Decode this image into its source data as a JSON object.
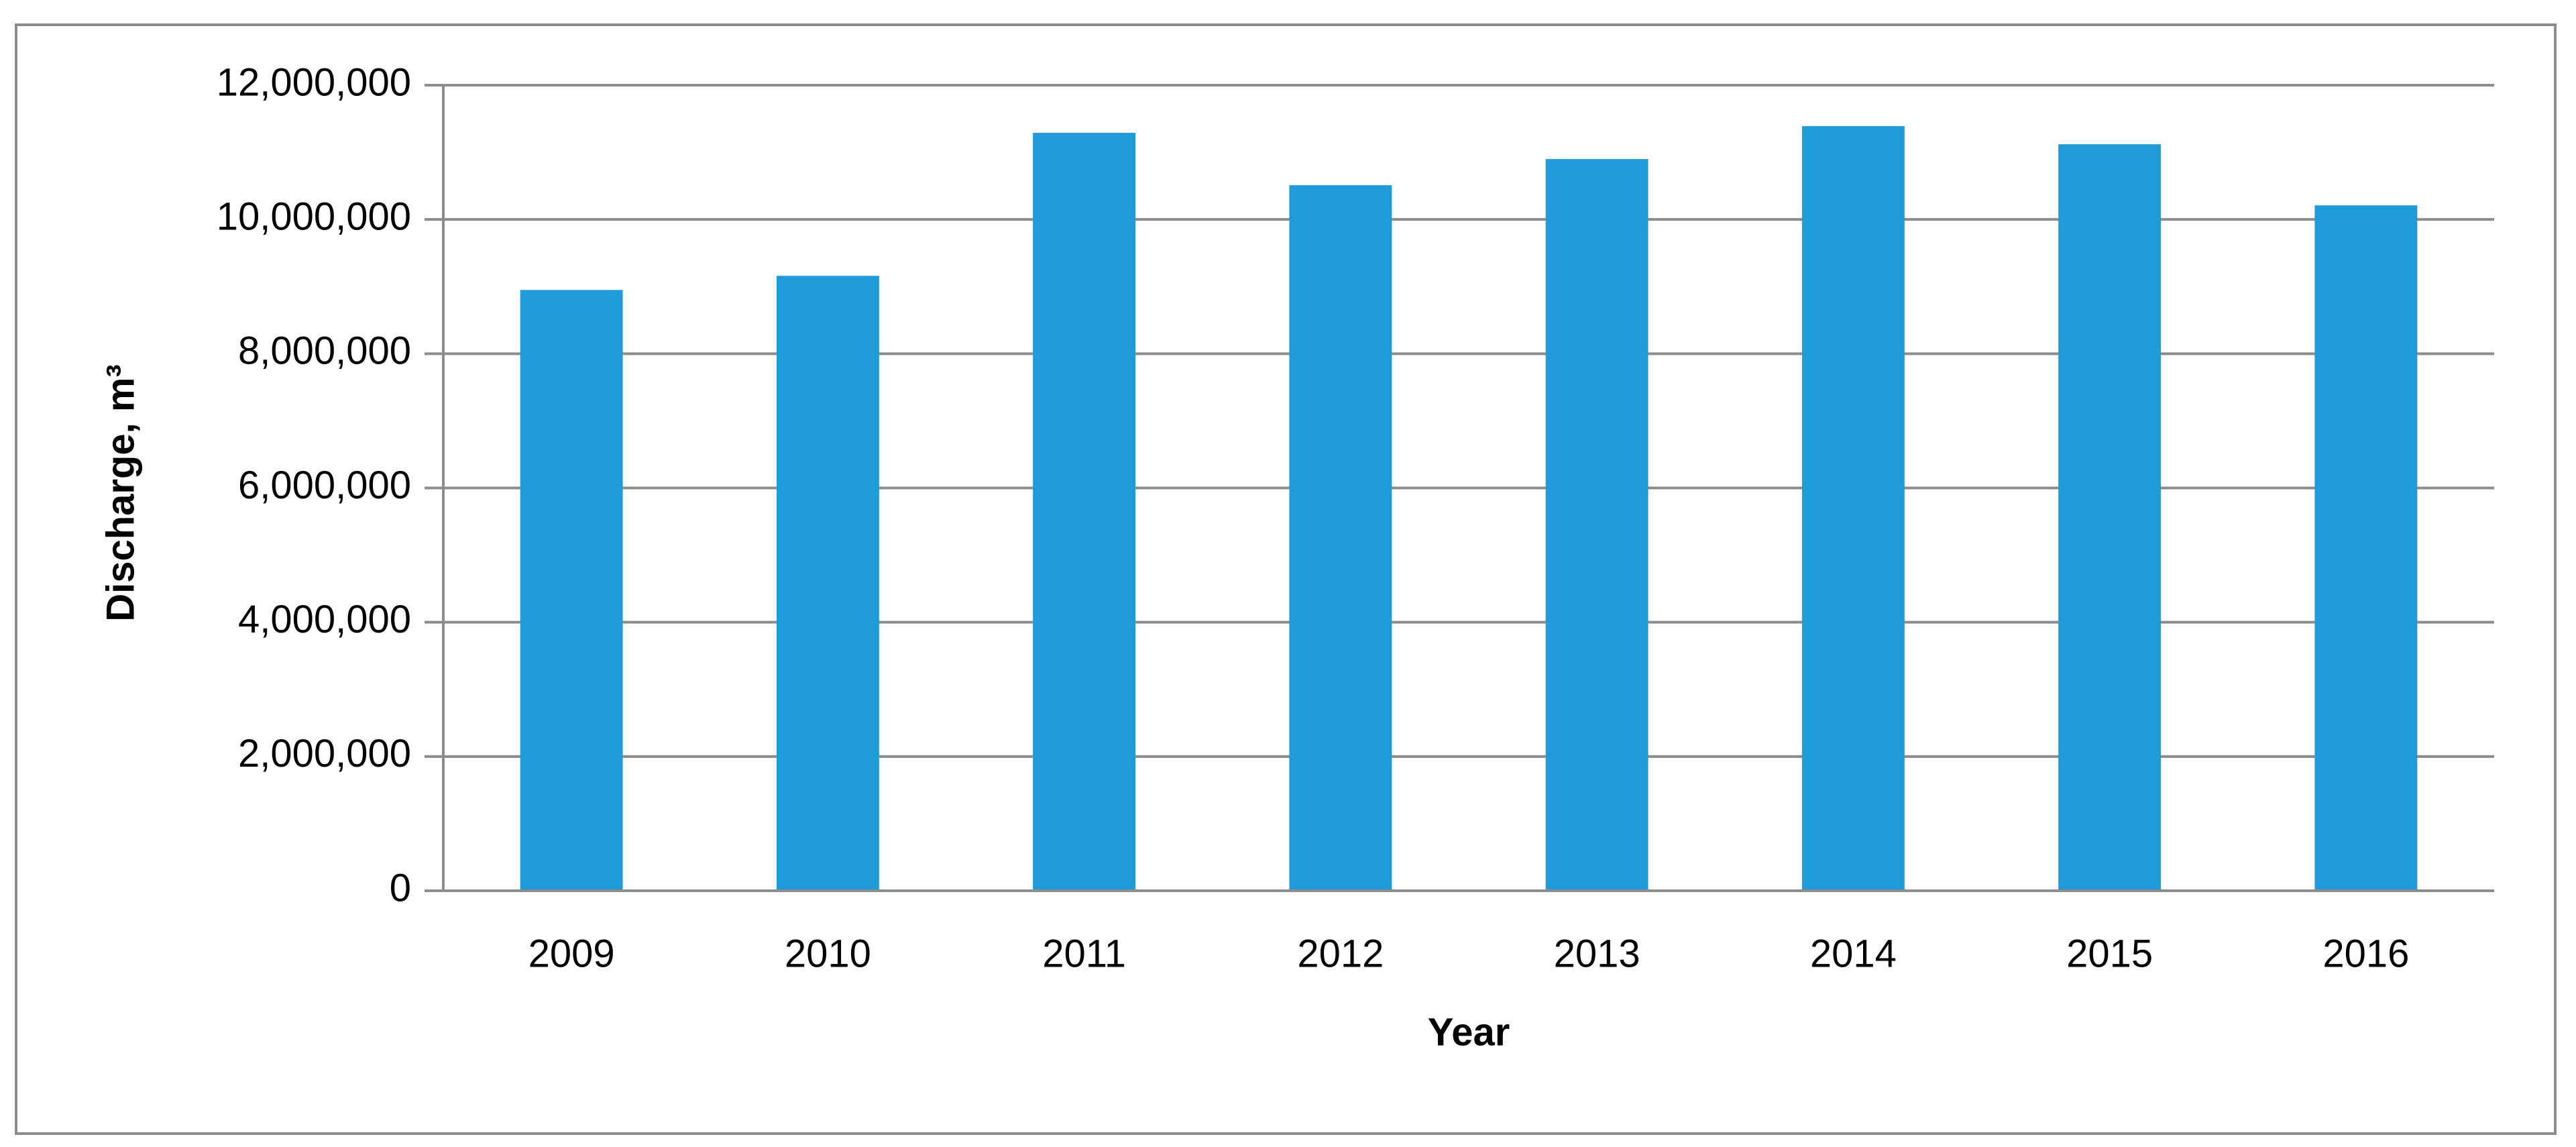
{
  "chart_data": {
    "type": "bar",
    "x_label": "Year",
    "y_label": "Discharge, m³",
    "categories": [
      "2009",
      "2010",
      "2011",
      "2012",
      "2013",
      "2014",
      "2015",
      "2016"
    ],
    "values": [
      8950000,
      9160000,
      11290000,
      10510000,
      10900000,
      11390000,
      11120000,
      10210000
    ],
    "color": "#1f9bd9",
    "ylim": [
      0,
      12000000
    ],
    "yticks": [
      0,
      {
        "value": 2000000,
        "label": "2,000,000"
      },
      {
        "value": 4000000,
        "label": "4,000,000"
      },
      {
        "value": 6000000,
        "label": "6,000,000"
      },
      {
        "value": 8000000,
        "label": "8,000,000"
      },
      {
        "value": 10000000,
        "label": "10,000,000"
      },
      {
        "value": 12000000,
        "label": "12,000,000"
      }
    ],
    "grid": true
  }
}
